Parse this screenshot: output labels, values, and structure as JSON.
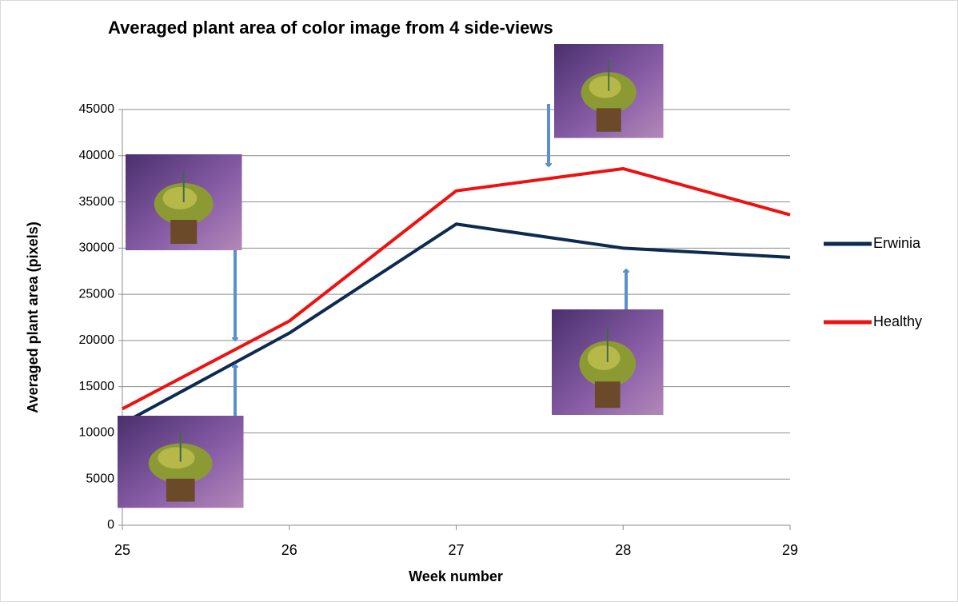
{
  "chart_data": {
    "type": "line",
    "title": "Averaged plant area of color image from 4 side-views",
    "x_label": "Week number",
    "y_label": "Averaged plant area (pixels)",
    "x": [
      25,
      26,
      27,
      28,
      29
    ],
    "series": [
      {
        "name": "Erwinia",
        "color": "#0d2a4f",
        "values": [
          11000,
          20800,
          32600,
          30000,
          29000
        ]
      },
      {
        "name": "Healthy",
        "color": "#ee1111",
        "values": [
          12600,
          22100,
          36200,
          38600,
          33600
        ]
      }
    ],
    "xlim": [
      25,
      29
    ],
    "xticks": [
      25,
      26,
      27,
      28,
      29
    ],
    "ylim": [
      0,
      45000
    ],
    "yticks": [
      0,
      5000,
      10000,
      15000,
      20000,
      25000,
      30000,
      35000,
      40000,
      45000
    ],
    "grid": true,
    "legend": "right"
  }
}
